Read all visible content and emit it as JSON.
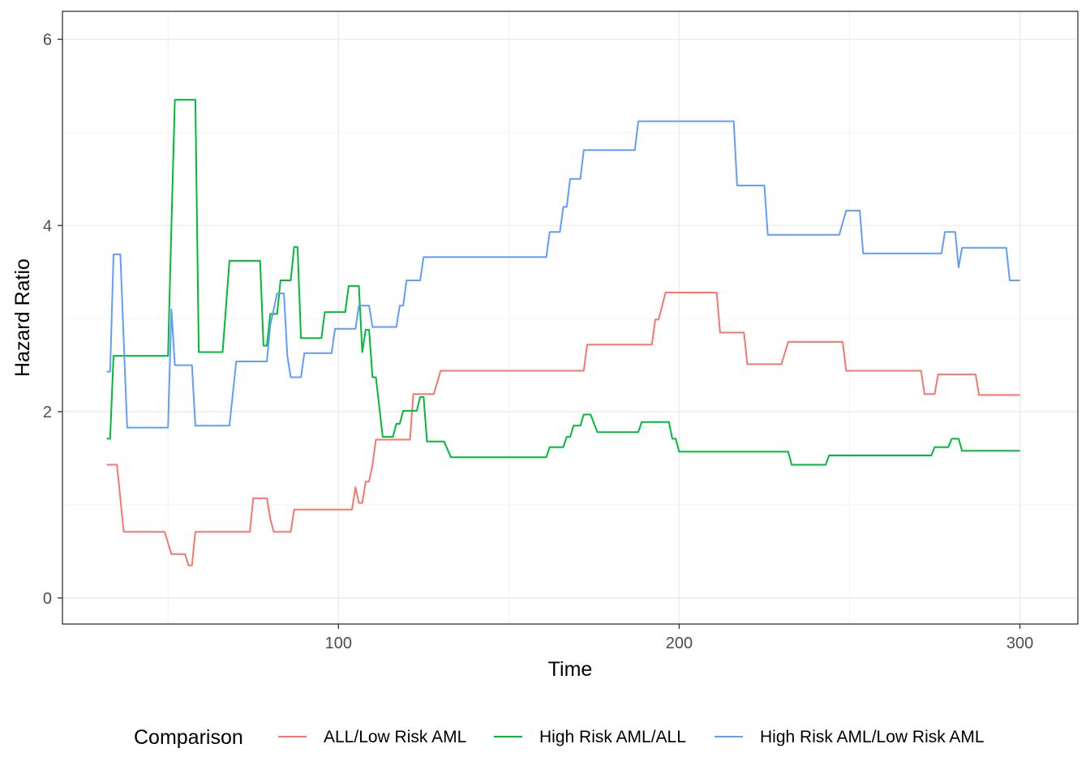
{
  "chart_data": {
    "type": "line",
    "step": true,
    "xlabel": "Time",
    "ylabel": "Hazard Ratio",
    "xlim": [
      19,
      317
    ],
    "ylim": [
      -0.28,
      6.3
    ],
    "x_ticks": [
      100,
      200,
      300
    ],
    "y_ticks": [
      0,
      2,
      4,
      6
    ],
    "grid": true,
    "legend": {
      "title": "Comparison",
      "position": "bottom"
    },
    "series": [
      {
        "name": "ALL/Low Risk AML",
        "color": "#F8766D",
        "points": [
          [
            32,
            1.43
          ],
          [
            35,
            1.43
          ],
          [
            37,
            0.71
          ],
          [
            49,
            0.71
          ],
          [
            51,
            0.47
          ],
          [
            55,
            0.47
          ],
          [
            56,
            0.35
          ],
          [
            57,
            0.35
          ],
          [
            58,
            0.71
          ],
          [
            74,
            0.71
          ],
          [
            75,
            1.07
          ],
          [
            79,
            1.07
          ],
          [
            80,
            0.85
          ],
          [
            81,
            0.71
          ],
          [
            86,
            0.71
          ],
          [
            87,
            0.95
          ],
          [
            104,
            0.95
          ],
          [
            105,
            1.19
          ],
          [
            106,
            1.02
          ],
          [
            107,
            1.02
          ],
          [
            108,
            1.25
          ],
          [
            109,
            1.25
          ],
          [
            110,
            1.43
          ],
          [
            111,
            1.7
          ],
          [
            121,
            1.7
          ],
          [
            122,
            2.19
          ],
          [
            128,
            2.19
          ],
          [
            130,
            2.44
          ],
          [
            172,
            2.44
          ],
          [
            173,
            2.72
          ],
          [
            192,
            2.72
          ],
          [
            193,
            2.99
          ],
          [
            194,
            2.99
          ],
          [
            196,
            3.28
          ],
          [
            211,
            3.28
          ],
          [
            212,
            2.85
          ],
          [
            219,
            2.85
          ],
          [
            220,
            2.51
          ],
          [
            230,
            2.51
          ],
          [
            232,
            2.75
          ],
          [
            248,
            2.75
          ],
          [
            249,
            2.44
          ],
          [
            271,
            2.44
          ],
          [
            272,
            2.19
          ],
          [
            275,
            2.19
          ],
          [
            276,
            2.4
          ],
          [
            287,
            2.4
          ],
          [
            288,
            2.18
          ],
          [
            300,
            2.18
          ]
        ]
      },
      {
        "name": "High Risk AML/ALL",
        "color": "#00BA38",
        "points": [
          [
            32,
            1.71
          ],
          [
            33,
            1.71
          ],
          [
            34,
            2.6
          ],
          [
            50,
            2.6
          ],
          [
            51,
            4.0
          ],
          [
            52,
            5.35
          ],
          [
            58,
            5.35
          ],
          [
            59,
            2.64
          ],
          [
            66,
            2.64
          ],
          [
            68,
            3.62
          ],
          [
            77,
            3.62
          ],
          [
            78,
            2.71
          ],
          [
            79,
            2.71
          ],
          [
            80,
            3.05
          ],
          [
            82,
            3.05
          ],
          [
            83,
            3.41
          ],
          [
            86,
            3.41
          ],
          [
            87,
            3.77
          ],
          [
            88,
            3.77
          ],
          [
            89,
            2.79
          ],
          [
            95,
            2.79
          ],
          [
            96,
            3.07
          ],
          [
            102,
            3.07
          ],
          [
            103,
            3.35
          ],
          [
            106,
            3.35
          ],
          [
            107,
            2.64
          ],
          [
            108,
            2.88
          ],
          [
            109,
            2.88
          ],
          [
            110,
            2.37
          ],
          [
            111,
            2.37
          ],
          [
            113,
            1.73
          ],
          [
            116,
            1.73
          ],
          [
            117,
            1.87
          ],
          [
            118,
            1.87
          ],
          [
            119,
            2.01
          ],
          [
            123,
            2.01
          ],
          [
            124,
            2.16
          ],
          [
            125,
            2.16
          ],
          [
            126,
            1.68
          ],
          [
            131,
            1.68
          ],
          [
            133,
            1.51
          ],
          [
            161,
            1.51
          ],
          [
            162,
            1.62
          ],
          [
            166,
            1.62
          ],
          [
            167,
            1.73
          ],
          [
            168,
            1.73
          ],
          [
            169,
            1.85
          ],
          [
            171,
            1.85
          ],
          [
            172,
            1.97
          ],
          [
            174,
            1.97
          ],
          [
            176,
            1.78
          ],
          [
            188,
            1.78
          ],
          [
            189,
            1.89
          ],
          [
            197,
            1.89
          ],
          [
            198,
            1.71
          ],
          [
            199,
            1.71
          ],
          [
            200,
            1.57
          ],
          [
            232,
            1.57
          ],
          [
            233,
            1.43
          ],
          [
            243,
            1.43
          ],
          [
            244,
            1.53
          ],
          [
            274,
            1.53
          ],
          [
            275,
            1.62
          ],
          [
            279,
            1.62
          ],
          [
            280,
            1.71
          ],
          [
            282,
            1.71
          ],
          [
            283,
            1.58
          ],
          [
            300,
            1.58
          ]
        ]
      },
      {
        "name": "High Risk AML/Low Risk AML",
        "color": "#619CFF",
        "points": [
          [
            32,
            2.43
          ],
          [
            33,
            2.43
          ],
          [
            34,
            3.69
          ],
          [
            36,
            3.69
          ],
          [
            38,
            1.83
          ],
          [
            50,
            1.83
          ],
          [
            51,
            3.1
          ],
          [
            52,
            2.5
          ],
          [
            57,
            2.5
          ],
          [
            58,
            1.85
          ],
          [
            68,
            1.85
          ],
          [
            70,
            2.54
          ],
          [
            79,
            2.54
          ],
          [
            80,
            2.93
          ],
          [
            82,
            3.27
          ],
          [
            84,
            3.27
          ],
          [
            85,
            2.6
          ],
          [
            86,
            2.37
          ],
          [
            89,
            2.37
          ],
          [
            90,
            2.63
          ],
          [
            98,
            2.63
          ],
          [
            99,
            2.89
          ],
          [
            105,
            2.89
          ],
          [
            106,
            3.14
          ],
          [
            109,
            3.14
          ],
          [
            110,
            2.91
          ],
          [
            117,
            2.91
          ],
          [
            118,
            3.14
          ],
          [
            119,
            3.14
          ],
          [
            120,
            3.41
          ],
          [
            124,
            3.41
          ],
          [
            125,
            3.66
          ],
          [
            161,
            3.66
          ],
          [
            162,
            3.93
          ],
          [
            165,
            3.93
          ],
          [
            166,
            4.2
          ],
          [
            167,
            4.2
          ],
          [
            168,
            4.5
          ],
          [
            171,
            4.5
          ],
          [
            172,
            4.81
          ],
          [
            187,
            4.81
          ],
          [
            188,
            5.12
          ],
          [
            216,
            5.12
          ],
          [
            217,
            4.43
          ],
          [
            225,
            4.43
          ],
          [
            226,
            3.9
          ],
          [
            247,
            3.9
          ],
          [
            249,
            4.16
          ],
          [
            253,
            4.16
          ],
          [
            254,
            3.7
          ],
          [
            277,
            3.7
          ],
          [
            278,
            3.93
          ],
          [
            281,
            3.93
          ],
          [
            282,
            3.55
          ],
          [
            283,
            3.76
          ],
          [
            296,
            3.76
          ],
          [
            297,
            3.41
          ],
          [
            300,
            3.41
          ]
        ]
      }
    ]
  }
}
